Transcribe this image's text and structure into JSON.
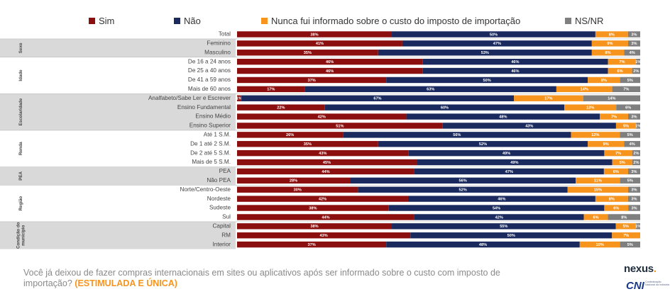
{
  "legend": [
    {
      "label": "Sim",
      "color": "#8b0f0f"
    },
    {
      "label": "Não",
      "color": "#1a2a5e"
    },
    {
      "label": "Nunca fui informado sobre o custo do imposto de importação",
      "color": "#f7941d"
    },
    {
      "label": "NS/NR",
      "color": "#7f7f7f"
    }
  ],
  "question": {
    "text": "Você já deixou de fazer compras internacionais em sites ou aplicativos após ser informado sobre o custo com imposto de importação?",
    "emphasis": "(ESTIMULADA E ÚNICA)"
  },
  "brand": {
    "nexus": "nexus",
    "nexus_dot": ".",
    "cni": "CNI",
    "cni_sub": "Confederação Nacional da Indústria"
  },
  "chart_data": {
    "type": "bar",
    "orientation": "horizontal",
    "stacked": true,
    "unit": "%",
    "series_names": [
      "Sim",
      "Não",
      "Nunca fui informado sobre o custo do imposto de importação",
      "NS/NR"
    ],
    "groups": [
      {
        "name": "",
        "rows": [
          {
            "label": "Total",
            "values": [
              38,
              50,
              8,
              3
            ]
          }
        ]
      },
      {
        "name": "Sexo",
        "rows": [
          {
            "label": "Feminino",
            "values": [
              41,
              47,
              9,
              3
            ]
          },
          {
            "label": "Masculino",
            "values": [
              35,
              53,
              8,
              4
            ]
          }
        ]
      },
      {
        "name": "Idade",
        "rows": [
          {
            "label": "De 16 a 24 anos",
            "values": [
              46,
              46,
              7,
              1
            ]
          },
          {
            "label": "De 25 a 40 anos",
            "values": [
              46,
              46,
              6,
              2
            ]
          },
          {
            "label": "De 41 a 59 anos",
            "values": [
              37,
              50,
              8,
              5
            ]
          },
          {
            "label": "Mais de 60 anos",
            "values": [
              17,
              63,
              14,
              7
            ]
          }
        ]
      },
      {
        "name": "Escolaridade",
        "rows": [
          {
            "label": "Analfabeto/Sabe Ler e Escrever",
            "values": [
              1,
              67,
              17,
              14
            ]
          },
          {
            "label": "Ensino Fundamental",
            "values": [
              22,
              60,
              13,
              6
            ]
          },
          {
            "label": "Ensino Médio",
            "values": [
              42,
              48,
              7,
              3
            ]
          },
          {
            "label": "Ensino Superior",
            "values": [
              51,
              43,
              5,
              1
            ]
          }
        ]
      },
      {
        "name": "Renda",
        "rows": [
          {
            "label": "Até 1 S.M.",
            "values": [
              26,
              56,
              12,
              5
            ]
          },
          {
            "label": "De 1 até 2 S.M.",
            "values": [
              35,
              52,
              9,
              4
            ]
          },
          {
            "label": "De 2 até 5 S.M.",
            "values": [
              43,
              49,
              7,
              2
            ]
          },
          {
            "label": "Mais de 5 S.M.",
            "values": [
              45,
              49,
              5,
              2
            ]
          }
        ]
      },
      {
        "name": "PEA",
        "rows": [
          {
            "label": "PEA",
            "values": [
              44,
              47,
              6,
              3
            ]
          },
          {
            "label": "Não PEA",
            "values": [
              28,
              56,
              11,
              5
            ]
          }
        ]
      },
      {
        "name": "Região",
        "rows": [
          {
            "label": "Norte/Centro-Oeste",
            "values": [
              30,
              52,
              15,
              3
            ]
          },
          {
            "label": "Nordeste",
            "values": [
              42,
              46,
              8,
              3
            ]
          },
          {
            "label": "Sudeste",
            "values": [
              38,
              54,
              6,
              3
            ]
          },
          {
            "label": "Sul",
            "values": [
              44,
              42,
              6,
              8
            ]
          }
        ]
      },
      {
        "name": "Condição do município",
        "rows": [
          {
            "label": "Capital",
            "values": [
              38,
              55,
              5,
              1
            ]
          },
          {
            "label": "RM",
            "values": [
              43,
              50,
              7,
              ""
            ]
          },
          {
            "label": "Interior",
            "values": [
              37,
              48,
              10,
              5
            ]
          }
        ]
      }
    ]
  }
}
